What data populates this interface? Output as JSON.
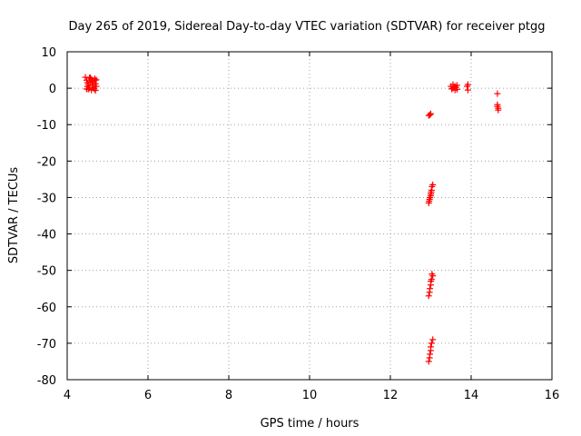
{
  "chart_data": {
    "type": "scatter",
    "title": "Day 265 of 2019, Sidereal Day-to-day VTEC variation (SDTVAR) for receiver ptgg",
    "xlabel": "GPS time / hours",
    "ylabel": "SDTVAR / TECUs",
    "xlim": [
      4,
      16
    ],
    "ylim": [
      -80,
      10
    ],
    "xticks": [
      4,
      6,
      8,
      10,
      12,
      14,
      16
    ],
    "yticks": [
      10,
      0,
      -10,
      -20,
      -30,
      -40,
      -50,
      -60,
      -70,
      -80
    ],
    "grid": true,
    "marker": "+",
    "color": "#ff0000",
    "series": [
      {
        "name": "SDTVAR",
        "points": [
          [
            4.45,
            3.0
          ],
          [
            4.48,
            2.2
          ],
          [
            4.5,
            1.5
          ],
          [
            4.5,
            0.5
          ],
          [
            4.52,
            -0.3
          ],
          [
            4.55,
            2.8
          ],
          [
            4.55,
            0.0
          ],
          [
            4.58,
            1.8
          ],
          [
            4.6,
            2.5
          ],
          [
            4.6,
            -0.5
          ],
          [
            4.62,
            0.8
          ],
          [
            4.65,
            2.0
          ],
          [
            4.65,
            0.2
          ],
          [
            4.68,
            2.6
          ],
          [
            4.7,
            1.2
          ],
          [
            4.7,
            -0.6
          ],
          [
            4.72,
            2.3
          ],
          [
            4.72,
            0.5
          ],
          [
            4.48,
            -0.2
          ],
          [
            4.53,
            1.0
          ],
          [
            4.57,
            2.9
          ],
          [
            4.63,
            1.5
          ],
          [
            4.67,
            -0.2
          ],
          [
            4.69,
            2.2
          ],
          [
            12.95,
            -7.5
          ],
          [
            13.0,
            -7.0
          ],
          [
            12.98,
            -7.3
          ],
          [
            12.95,
            -31.5
          ],
          [
            12.97,
            -30.5
          ],
          [
            12.98,
            -30.0
          ],
          [
            13.0,
            -29.5
          ],
          [
            13.0,
            -29.0
          ],
          [
            13.02,
            -28.0
          ],
          [
            13.03,
            -27.0
          ],
          [
            13.05,
            -26.5
          ],
          [
            12.96,
            -31.0
          ],
          [
            13.01,
            -28.5
          ],
          [
            12.95,
            -57.0
          ],
          [
            12.97,
            -56.0
          ],
          [
            12.98,
            -55.0
          ],
          [
            13.0,
            -54.0
          ],
          [
            13.0,
            -53.0
          ],
          [
            13.02,
            -52.5
          ],
          [
            13.05,
            -51.5
          ],
          [
            13.03,
            -51.0
          ],
          [
            12.95,
            -75.0
          ],
          [
            12.97,
            -74.0
          ],
          [
            12.98,
            -73.0
          ],
          [
            13.0,
            -72.0
          ],
          [
            13.0,
            -71.0
          ],
          [
            13.02,
            -70.0
          ],
          [
            13.05,
            -69.0
          ],
          [
            13.5,
            0.5
          ],
          [
            13.55,
            0.0
          ],
          [
            13.55,
            1.0
          ],
          [
            13.6,
            -0.5
          ],
          [
            13.6,
            0.5
          ],
          [
            13.62,
            0.2
          ],
          [
            13.65,
            0.8
          ],
          [
            13.65,
            -0.3
          ],
          [
            13.52,
            -0.2
          ],
          [
            13.58,
            0.3
          ],
          [
            13.9,
            0.5
          ],
          [
            13.92,
            -0.5
          ],
          [
            13.92,
            1.0
          ],
          [
            14.65,
            -1.5
          ],
          [
            14.65,
            -4.5
          ],
          [
            14.65,
            -5.0
          ],
          [
            14.67,
            -6.0
          ],
          [
            14.67,
            -5.5
          ]
        ]
      }
    ]
  }
}
